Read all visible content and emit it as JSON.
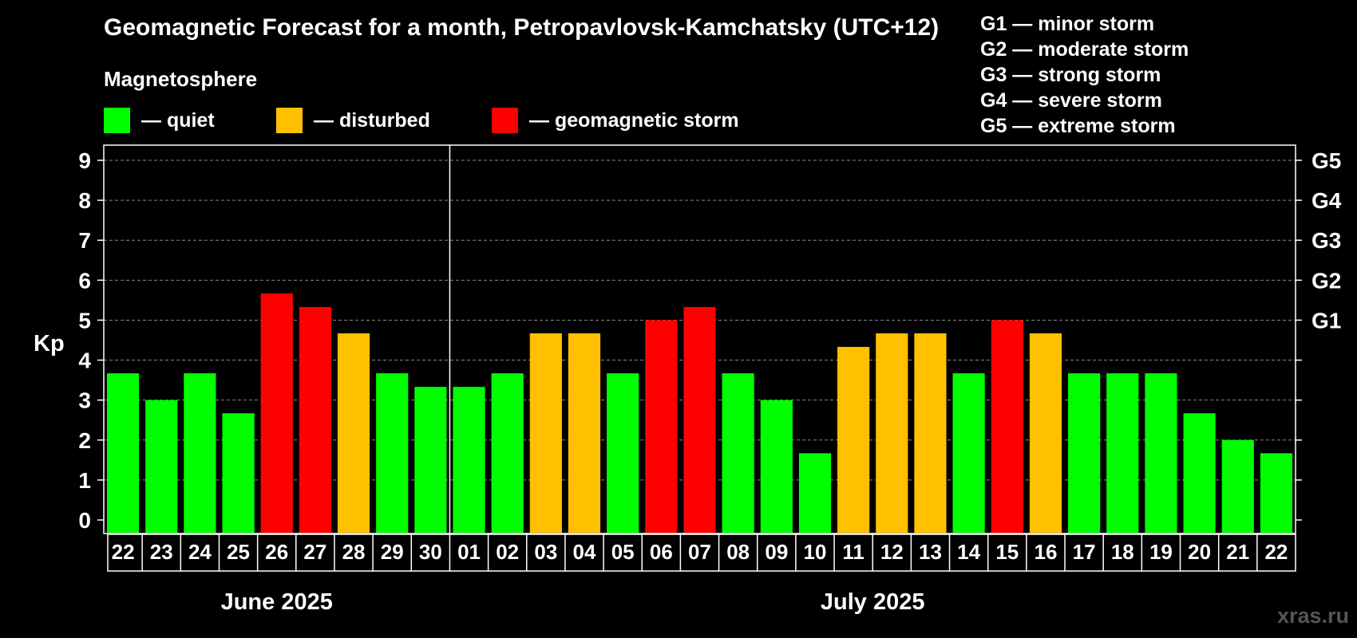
{
  "header": {
    "title": "Geomagnetic Forecast for a month, Petropavlovsk-Kamchatsky (UTC+12)",
    "subtitle": "Magnetosphere"
  },
  "legend": {
    "quiet": {
      "label": "— quiet",
      "color": "#00ff00"
    },
    "disturbed": {
      "label": "— disturbed",
      "color": "#ffc000"
    },
    "storm": {
      "label": "— geomagnetic storm",
      "color": "#ff0000"
    }
  },
  "storm_levels": [
    "G1 — minor storm",
    "G2 — moderate storm",
    "G3 — strong storm",
    "G4 — severe storm",
    "G5 — extreme storm"
  ],
  "watermark": "xras.ru",
  "chart_data": {
    "type": "bar",
    "ylabel": "Kp",
    "ylim": [
      0,
      9
    ],
    "grid": true,
    "y_ticks": [
      "0",
      "1",
      "2",
      "3",
      "4",
      "5",
      "6",
      "7",
      "8",
      "9"
    ],
    "right_axis_labels": [
      {
        "kp": 5,
        "label": "G1"
      },
      {
        "kp": 6,
        "label": "G2"
      },
      {
        "kp": 7,
        "label": "G3"
      },
      {
        "kp": 8,
        "label": "G4"
      },
      {
        "kp": 9,
        "label": "G5"
      }
    ],
    "months": [
      {
        "label": "June 2025",
        "count": 9
      },
      {
        "label": "July 2025",
        "count": 22
      }
    ],
    "categories": [
      "22",
      "23",
      "24",
      "25",
      "26",
      "27",
      "28",
      "29",
      "30",
      "01",
      "02",
      "03",
      "04",
      "05",
      "06",
      "07",
      "08",
      "09",
      "10",
      "11",
      "12",
      "13",
      "14",
      "15",
      "16",
      "17",
      "18",
      "19",
      "20",
      "21",
      "22"
    ],
    "values": [
      3.67,
      3.0,
      3.67,
      2.67,
      5.67,
      5.33,
      4.67,
      3.67,
      3.33,
      3.33,
      3.67,
      4.67,
      4.67,
      3.67,
      5.0,
      5.33,
      3.67,
      3.0,
      1.67,
      4.33,
      4.67,
      4.67,
      3.67,
      5.0,
      4.67,
      3.67,
      3.67,
      3.67,
      2.67,
      2.0,
      1.67
    ],
    "status": [
      "quiet",
      "quiet",
      "quiet",
      "quiet",
      "storm",
      "storm",
      "disturbed",
      "quiet",
      "quiet",
      "quiet",
      "quiet",
      "disturbed",
      "disturbed",
      "quiet",
      "storm",
      "storm",
      "quiet",
      "quiet",
      "quiet",
      "disturbed",
      "disturbed",
      "disturbed",
      "quiet",
      "storm",
      "disturbed",
      "quiet",
      "quiet",
      "quiet",
      "quiet",
      "quiet",
      "quiet"
    ]
  }
}
